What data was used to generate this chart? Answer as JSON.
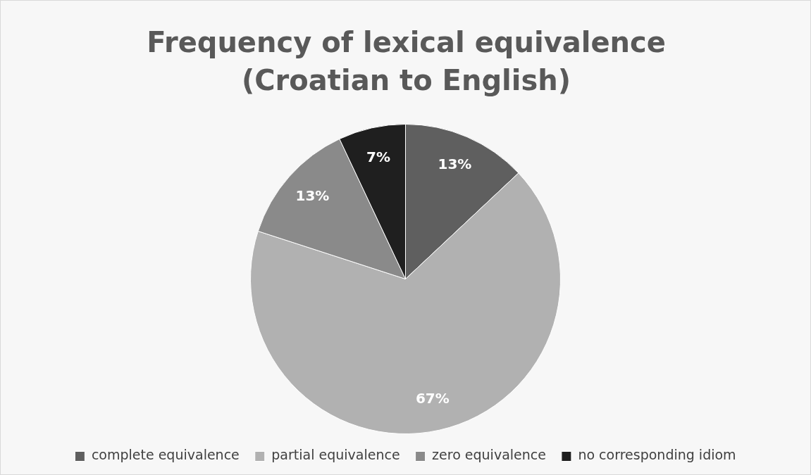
{
  "chart_data": {
    "type": "pie",
    "title": "Frequency of lexical equivalence (Croatian to English)",
    "categories": [
      "complete equivalence",
      "partial equivalence",
      "zero equivalence",
      "no corresponding idiom"
    ],
    "values": [
      13,
      67,
      13,
      7
    ],
    "colors": [
      "#5f5f5f",
      "#b1b1b1",
      "#8a8a8a",
      "#1f1f1f"
    ],
    "value_labels": [
      "13%",
      "67%",
      "13%",
      "7%"
    ],
    "legend": "bottom"
  }
}
